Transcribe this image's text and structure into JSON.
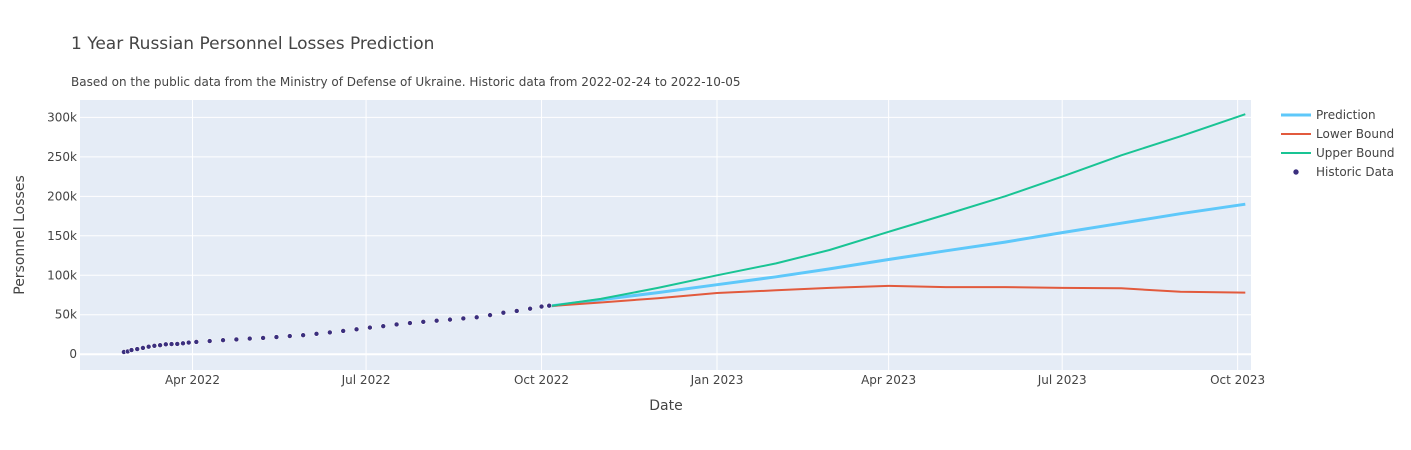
{
  "chart_data": {
    "type": "line",
    "title": "1 Year Russian Personnel Losses Prediction",
    "subtitle": "Based on the public data from the Ministry of Defense of Ukraine. Historic data from 2022-02-24 to 2022-10-05",
    "xlabel": "Date",
    "ylabel": "Personnel Losses",
    "xlim": [
      "2022-02-01",
      "2023-10-08"
    ],
    "ylim": [
      -20000,
      322000
    ],
    "x_ticks": [
      {
        "date": "2022-04-01",
        "label": "Apr 2022"
      },
      {
        "date": "2022-07-01",
        "label": "Jul 2022"
      },
      {
        "date": "2022-10-01",
        "label": "Oct 2022"
      },
      {
        "date": "2023-01-01",
        "label": "Jan 2023"
      },
      {
        "date": "2023-04-01",
        "label": "Apr 2023"
      },
      {
        "date": "2023-07-01",
        "label": "Jul 2023"
      },
      {
        "date": "2023-10-01",
        "label": "Oct 2023"
      }
    ],
    "y_ticks": [
      {
        "value": 0,
        "label": "0"
      },
      {
        "value": 50000,
        "label": "50k"
      },
      {
        "value": 100000,
        "label": "100k"
      },
      {
        "value": 150000,
        "label": "150k"
      },
      {
        "value": 200000,
        "label": "200k"
      },
      {
        "value": 250000,
        "label": "250k"
      },
      {
        "value": 300000,
        "label": "300k"
      }
    ],
    "grid": true,
    "legend_position": "top-right",
    "series": [
      {
        "name": "Prediction",
        "kind": "line",
        "color": "#5ec8fa",
        "points": [
          [
            "2022-10-05",
            61000
          ],
          [
            "2022-11-01",
            69000
          ],
          [
            "2022-12-01",
            78000
          ],
          [
            "2023-01-01",
            88000
          ],
          [
            "2023-02-01",
            98000
          ],
          [
            "2023-03-01",
            108000
          ],
          [
            "2023-04-01",
            120000
          ],
          [
            "2023-05-01",
            131000
          ],
          [
            "2023-06-01",
            142000
          ],
          [
            "2023-07-01",
            154000
          ],
          [
            "2023-08-01",
            166000
          ],
          [
            "2023-09-01",
            178000
          ],
          [
            "2023-10-05",
            190000
          ]
        ]
      },
      {
        "name": "Lower Bound",
        "kind": "line",
        "color": "#e25a3d",
        "points": [
          [
            "2022-10-05",
            61000
          ],
          [
            "2022-11-01",
            65500
          ],
          [
            "2022-12-01",
            71000
          ],
          [
            "2023-01-01",
            77500
          ],
          [
            "2023-02-01",
            81000
          ],
          [
            "2023-03-01",
            84000
          ],
          [
            "2023-04-01",
            86500
          ],
          [
            "2023-05-01",
            85000
          ],
          [
            "2023-06-01",
            85000
          ],
          [
            "2023-07-01",
            84000
          ],
          [
            "2023-08-01",
            83500
          ],
          [
            "2023-09-01",
            79000
          ],
          [
            "2023-10-05",
            78000
          ]
        ]
      },
      {
        "name": "Upper Bound",
        "kind": "line",
        "color": "#19c494",
        "points": [
          [
            "2022-10-05",
            61000
          ],
          [
            "2022-11-01",
            70000
          ],
          [
            "2022-12-01",
            84000
          ],
          [
            "2023-01-01",
            100000
          ],
          [
            "2023-02-01",
            115000
          ],
          [
            "2023-03-01",
            132000
          ],
          [
            "2023-04-01",
            155000
          ],
          [
            "2023-05-01",
            177000
          ],
          [
            "2023-06-01",
            200000
          ],
          [
            "2023-07-01",
            225000
          ],
          [
            "2023-08-01",
            252000
          ],
          [
            "2023-09-01",
            276000
          ],
          [
            "2023-10-05",
            304000
          ]
        ]
      },
      {
        "name": "Historic Data",
        "kind": "markers",
        "color": "#3b2f7e",
        "points": [
          [
            "2022-02-24",
            2800
          ],
          [
            "2022-02-26",
            3500
          ],
          [
            "2022-02-28",
            5300
          ],
          [
            "2022-03-03",
            6500
          ],
          [
            "2022-03-06",
            8000
          ],
          [
            "2022-03-09",
            9500
          ],
          [
            "2022-03-12",
            10700
          ],
          [
            "2022-03-15",
            11400
          ],
          [
            "2022-03-18",
            12500
          ],
          [
            "2022-03-21",
            12800
          ],
          [
            "2022-03-24",
            13000
          ],
          [
            "2022-03-27",
            13800
          ],
          [
            "2022-03-30",
            14700
          ],
          [
            "2022-04-03",
            15600
          ],
          [
            "2022-04-10",
            16700
          ],
          [
            "2022-04-17",
            17800
          ],
          [
            "2022-04-24",
            18700
          ],
          [
            "2022-05-01",
            19800
          ],
          [
            "2022-05-08",
            20600
          ],
          [
            "2022-05-15",
            21700
          ],
          [
            "2022-05-22",
            23000
          ],
          [
            "2022-05-29",
            24100
          ],
          [
            "2022-06-05",
            25800
          ],
          [
            "2022-06-12",
            27600
          ],
          [
            "2022-06-19",
            29500
          ],
          [
            "2022-06-26",
            31500
          ],
          [
            "2022-07-03",
            33700
          ],
          [
            "2022-07-10",
            35500
          ],
          [
            "2022-07-17",
            37700
          ],
          [
            "2022-07-24",
            39500
          ],
          [
            "2022-07-31",
            41000
          ],
          [
            "2022-08-07",
            42500
          ],
          [
            "2022-08-14",
            43800
          ],
          [
            "2022-08-21",
            45300
          ],
          [
            "2022-08-28",
            46800
          ],
          [
            "2022-09-04",
            49500
          ],
          [
            "2022-09-11",
            52600
          ],
          [
            "2022-09-18",
            54800
          ],
          [
            "2022-09-25",
            57700
          ],
          [
            "2022-10-01",
            60400
          ],
          [
            "2022-10-05",
            61500
          ]
        ]
      }
    ]
  }
}
